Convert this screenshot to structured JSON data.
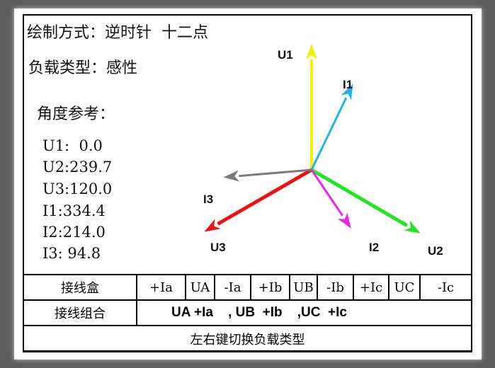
{
  "header": {
    "draw_mode_label": "绘制方式：",
    "draw_mode_value": "逆时针  十二点",
    "load_type_label": "负载类型：",
    "load_type_value": "感性",
    "angle_ref_label": "角度参考："
  },
  "angles": [
    {
      "name": "U1",
      "text": "U1:  0.0",
      "value": 0.0,
      "color": "#f2f200"
    },
    {
      "name": "U2",
      "text": "U2:239.7",
      "value": 239.7,
      "color": "#22e622"
    },
    {
      "name": "U3",
      "text": "U3:120.0",
      "value": 120.0,
      "color": "#ee1111"
    },
    {
      "name": "I1",
      "text": "I1:334.4",
      "value": 334.4,
      "color": "#22b4e6"
    },
    {
      "name": "I2",
      "text": "I2:214.0",
      "value": 214.0,
      "color": "#ee22ee"
    },
    {
      "name": "I3",
      "text": "I3: 94.8",
      "value": 94.8,
      "color": "#7a7a7a"
    }
  ],
  "vector_labels": {
    "U1": "U1",
    "U2": "U2",
    "U3": "U3",
    "I1": "I1",
    "I2": "I2",
    "I3": "I3"
  },
  "table": {
    "junction_label": "接线盒",
    "terminals": [
      "+Ia",
      "UA",
      "-Ia",
      "+Ib",
      "UB",
      "-Ib",
      "+Ic",
      "UC",
      "-Ic"
    ],
    "combo_label": "接线组合",
    "combo_value": "UA +Ia    , UB  +Ib    ,UC  +Ic",
    "hint": "左右键切换负载类型"
  }
}
